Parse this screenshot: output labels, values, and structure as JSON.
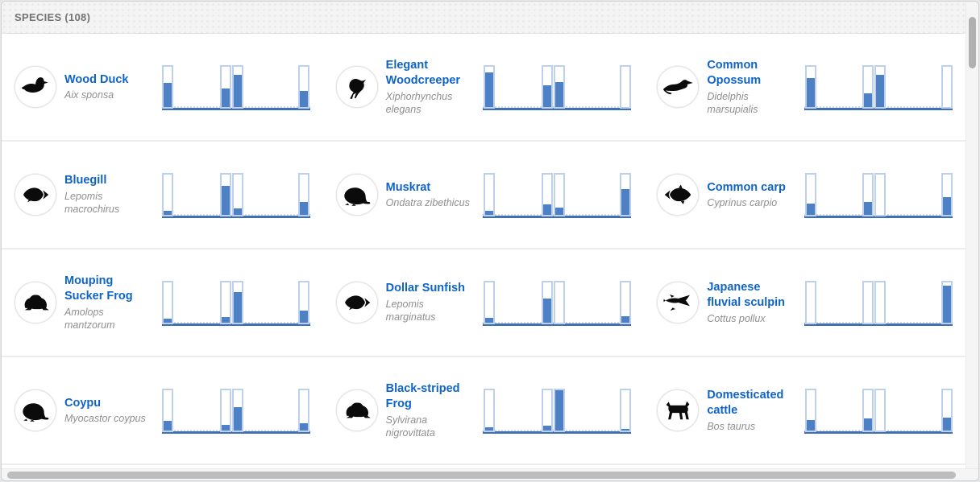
{
  "header": {
    "title": "SPECIES (108)"
  },
  "colors": {
    "species_name": "#0e64c8",
    "bar_fill": "#4e80c6",
    "bar_outline": "#bdd1ee",
    "baseline": "#3f6fb5"
  },
  "chart_data": {
    "type": "bar",
    "note": "per-species mini occurrence histogram, 4 fixed bins, values are fill fractions 0-1",
    "bins": 4
  },
  "species": [
    {
      "common_name": "Wood Duck",
      "scientific_name": "Aix sponsa",
      "icon": "duck-silhouette-icon",
      "chart_fills": [
        0.6,
        0.46,
        0.8,
        0.4
      ]
    },
    {
      "common_name": "Elegant Woodcreeper",
      "scientific_name": "Xiphorhynchus elegans",
      "icon": "bird-silhouette-icon",
      "chart_fills": [
        0.87,
        0.55,
        0.62,
        0.0
      ]
    },
    {
      "common_name": "Common Opossum",
      "scientific_name": "Didelphis marsupialis",
      "icon": "opossum-silhouette-icon",
      "chart_fills": [
        0.73,
        0.34,
        0.8,
        0.0
      ]
    },
    {
      "common_name": "Bluegill",
      "scientific_name": "Lepomis macrochirus",
      "icon": "sunfish-silhouette-icon",
      "chart_fills": [
        0.1,
        0.73,
        0.17,
        0.33
      ]
    },
    {
      "common_name": "Muskrat",
      "scientific_name": "Ondatra zibethicus",
      "icon": "rodent-silhouette-icon",
      "chart_fills": [
        0.1,
        0.27,
        0.18,
        0.64
      ]
    },
    {
      "common_name": "Common carp",
      "scientific_name": "Cyprinus carpio",
      "icon": "carp-silhouette-icon",
      "chart_fills": [
        0.28,
        0.33,
        0.0,
        0.44
      ]
    },
    {
      "common_name": "Mouping Sucker Frog",
      "scientific_name": "Amolops mantzorum",
      "icon": "frog-silhouette-icon",
      "chart_fills": [
        0.11,
        0.15,
        0.77,
        0.3
      ]
    },
    {
      "common_name": "Dollar Sunfish",
      "scientific_name": "Lepomis marginatus",
      "icon": "sunfish-silhouette-icon",
      "chart_fills": [
        0.13,
        0.6,
        0.0,
        0.16
      ]
    },
    {
      "common_name": "Japanese fluvial sculpin",
      "scientific_name": "Cottus pollux",
      "icon": "sculpin-silhouette-icon",
      "chart_fills": [
        0.0,
        0.0,
        0.0,
        0.92
      ]
    },
    {
      "common_name": "Coypu",
      "scientific_name": "Myocastor coypus",
      "icon": "rodent-silhouette-icon",
      "chart_fills": [
        0.25,
        0.14,
        0.58,
        0.19
      ]
    },
    {
      "common_name": "Black-striped Frog",
      "scientific_name": "Sylvirana nigrovittata",
      "icon": "frog-silhouette-icon",
      "chart_fills": [
        0.09,
        0.13,
        1.0,
        0.05
      ]
    },
    {
      "common_name": "Domesticated cattle",
      "scientific_name": "Bos taurus",
      "icon": "cow-silhouette-icon",
      "chart_fills": [
        0.26,
        0.3,
        0.0,
        0.33
      ]
    }
  ]
}
